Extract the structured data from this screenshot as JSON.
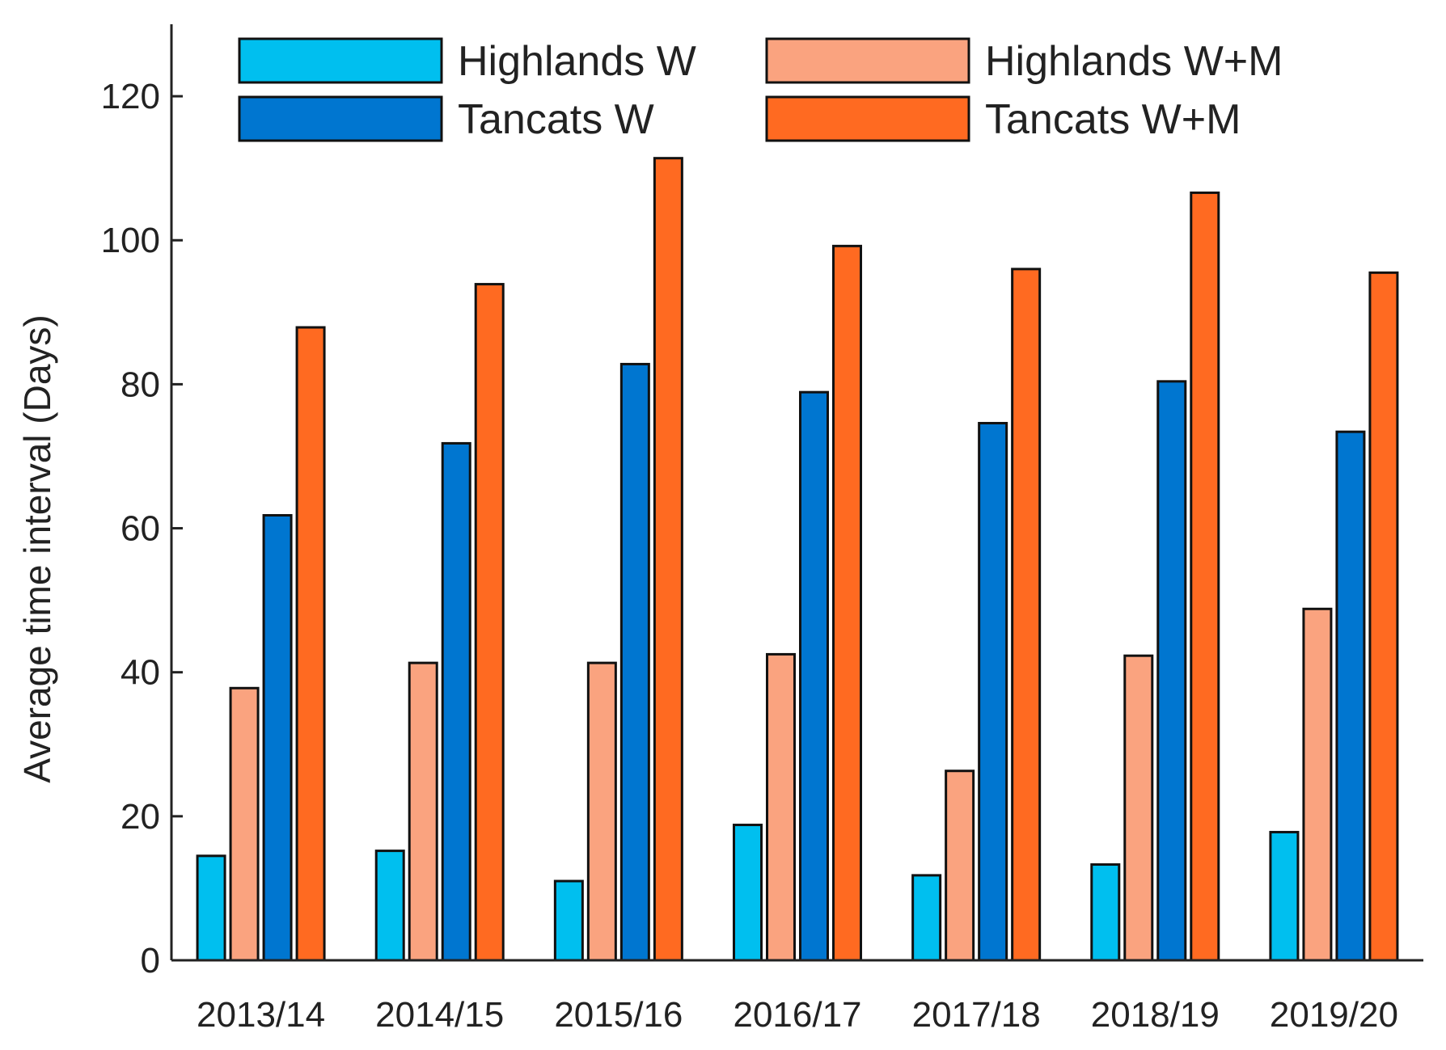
{
  "chart_data": {
    "type": "bar",
    "title": "",
    "xlabel": "",
    "ylabel": "Average time interval (Days)",
    "ylim": [
      0,
      130
    ],
    "yticks": [
      0,
      20,
      40,
      60,
      80,
      100,
      120
    ],
    "grid": false,
    "legend_position": "top",
    "categories": [
      "2013/14",
      "2014/15",
      "2015/16",
      "2016/17",
      "2017/18",
      "2018/19",
      "2019/20"
    ],
    "series": [
      {
        "name": "Highlands W",
        "color": "#00BFEF",
        "values": [
          14.5,
          15.2,
          11.0,
          18.8,
          11.8,
          13.3,
          17.8
        ]
      },
      {
        "name": "Highlands W+M",
        "color": "#FAA37F",
        "values": [
          37.8,
          41.3,
          41.3,
          42.5,
          26.3,
          42.3,
          48.8
        ]
      },
      {
        "name": "Tancats W",
        "color": "#0076D0",
        "values": [
          61.8,
          71.8,
          82.8,
          78.9,
          74.6,
          80.4,
          73.4
        ]
      },
      {
        "name": "Tancats W+M",
        "color": "#FF6A21",
        "values": [
          87.9,
          93.9,
          111.4,
          99.2,
          96.0,
          106.6,
          95.5
        ]
      }
    ]
  }
}
